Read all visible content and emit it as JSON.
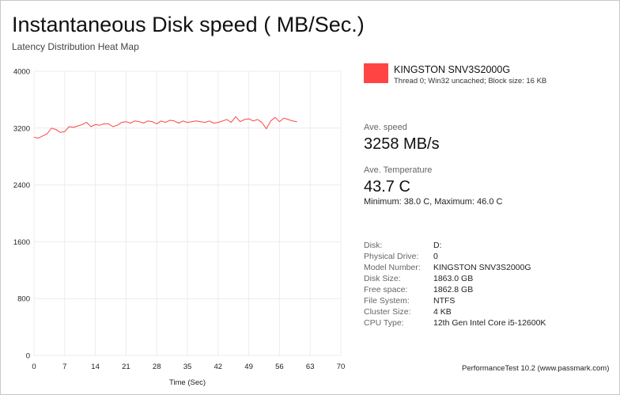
{
  "header": {
    "title": "Instantaneous Disk speed ( MB/Sec.)",
    "subtitle": "Latency Distribution Heat Map"
  },
  "legend": {
    "name": "KINGSTON SNV3S2000G",
    "description": "Thread 0; Win32 uncached; Block size: 16 KB",
    "color": "#ff4444"
  },
  "stats": {
    "speed_label": "Ave. speed",
    "speed_value": "3258 MB/s",
    "temp_label": "Ave. Temperature",
    "temp_value": "43.7 C",
    "temp_minmax": "Minimum: 38.0 C, Maximum: 46.0 C"
  },
  "info": [
    {
      "key": "Disk:",
      "value": "D:"
    },
    {
      "key": "Physical Drive:",
      "value": "0"
    },
    {
      "key": "Model Number:",
      "value": "KINGSTON SNV3S2000G"
    },
    {
      "key": "Disk Size:",
      "value": "1863.0 GB"
    },
    {
      "key": "Free space:",
      "value": "1862.8 GB"
    },
    {
      "key": "File System:",
      "value": "NTFS"
    },
    {
      "key": "Cluster Size:",
      "value": "4 KB"
    },
    {
      "key": "CPU Type:",
      "value": "12th Gen Intel Core i5-12600K"
    }
  ],
  "footer": "PerformanceTest 10.2 (www.passmark.com)",
  "chart_data": {
    "type": "line",
    "title": "Instantaneous Disk speed ( MB/Sec.)",
    "subtitle": "Latency Distribution Heat Map",
    "xlabel": "Time (Sec)",
    "ylabel": "",
    "xlim": [
      0,
      70
    ],
    "ylim": [
      0,
      4000
    ],
    "xticks": [
      "0",
      "7",
      "14",
      "21",
      "28",
      "35",
      "42",
      "49",
      "56",
      "63",
      "70"
    ],
    "yticks": [
      "0",
      "800",
      "1600",
      "2400",
      "3200",
      "4000"
    ],
    "grid": true,
    "series": [
      {
        "name": "KINGSTON SNV3S2000G",
        "color": "#ff4444",
        "x": [
          0,
          1,
          2,
          3,
          4,
          5,
          6,
          7,
          8,
          9,
          10,
          11,
          12,
          13,
          14,
          15,
          16,
          17,
          18,
          19,
          20,
          21,
          22,
          23,
          24,
          25,
          26,
          27,
          28,
          29,
          30,
          31,
          32,
          33,
          34,
          35,
          36,
          37,
          38,
          39,
          40,
          41,
          42,
          43,
          44,
          45,
          46,
          47,
          48,
          49,
          50,
          51,
          52,
          53,
          54,
          55,
          56,
          57,
          58,
          59,
          60
        ],
        "y": [
          3070,
          3060,
          3090,
          3120,
          3200,
          3180,
          3140,
          3150,
          3220,
          3210,
          3230,
          3250,
          3280,
          3220,
          3250,
          3240,
          3260,
          3260,
          3220,
          3240,
          3280,
          3290,
          3270,
          3300,
          3290,
          3270,
          3300,
          3290,
          3260,
          3300,
          3280,
          3310,
          3300,
          3270,
          3300,
          3280,
          3290,
          3300,
          3290,
          3280,
          3300,
          3270,
          3280,
          3300,
          3320,
          3280,
          3360,
          3290,
          3320,
          3330,
          3300,
          3320,
          3280,
          3190,
          3300,
          3350,
          3290,
          3340,
          3320,
          3300,
          3290
        ]
      }
    ]
  }
}
